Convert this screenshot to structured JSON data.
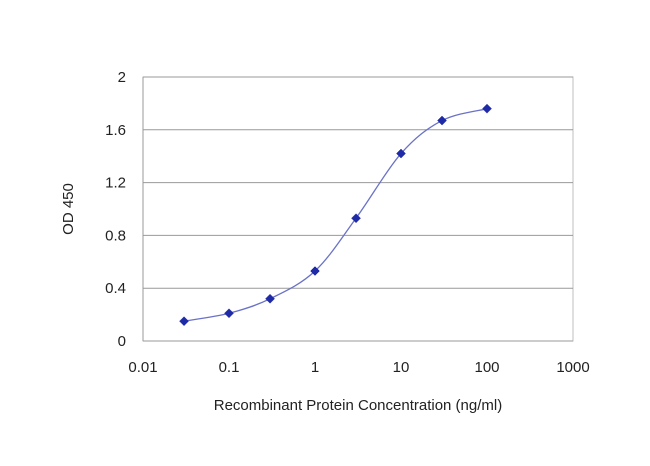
{
  "chart_data": {
    "type": "scatter",
    "title": "",
    "xlabel": "Recombinant Protein Concentration (ng/ml)",
    "ylabel": "OD 450",
    "x_scale": "log",
    "xlim": [
      0.01,
      1000
    ],
    "ylim": [
      0,
      2
    ],
    "x_ticks": [
      0.01,
      0.1,
      1,
      10,
      100,
      1000
    ],
    "x_tick_labels": [
      "0.01",
      "0.1",
      "1",
      "10",
      "100",
      "1000"
    ],
    "y_ticks": [
      0,
      0.4,
      0.8,
      1.2,
      1.6,
      2
    ],
    "y_tick_labels": [
      "0",
      "0.4",
      "0.8",
      "1.2",
      "1.6",
      "2"
    ],
    "grid": "horizontal",
    "legend": "none",
    "series": [
      {
        "x": [
          0.03,
          0.1,
          0.3,
          1,
          3,
          10,
          30,
          100
        ],
        "y": [
          0.15,
          0.21,
          0.32,
          0.53,
          0.93,
          1.42,
          1.67,
          1.76
        ],
        "connector": "smooth-line",
        "marker": "diamond",
        "color": "#1e2aa6",
        "line_color": "#6a72c8"
      }
    ],
    "colors": {
      "plot_border": "#bfbfbf",
      "grid": "#999999",
      "axis": "#999999"
    }
  }
}
